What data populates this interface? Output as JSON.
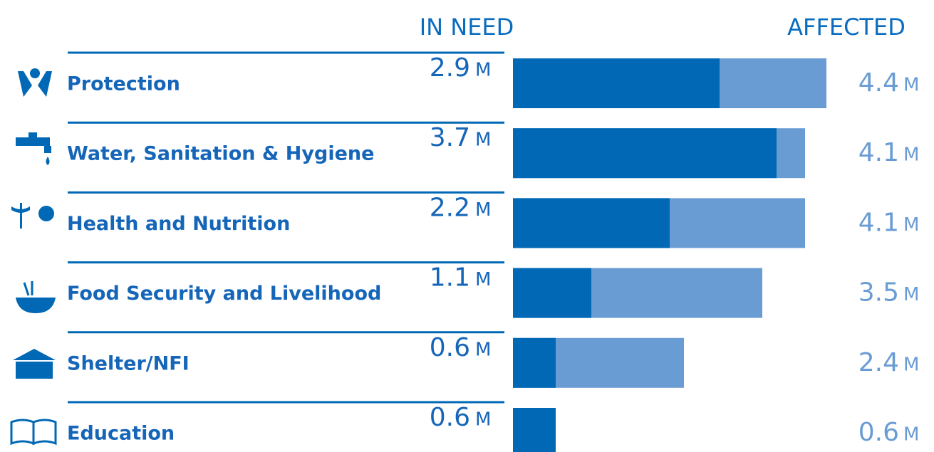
{
  "chart_data": {
    "type": "bar",
    "series": [
      {
        "name": "IN NEED",
        "color": "#0068b4",
        "values": [
          2.9,
          3.7,
          2.2,
          1.1,
          0.6,
          0.6
        ]
      },
      {
        "name": "AFFECTED",
        "color": "#6a9cd4",
        "values": [
          4.4,
          4.1,
          4.1,
          3.5,
          2.4,
          0.6
        ]
      }
    ],
    "categories": [
      "Protection",
      "Water, Sanitation & Hygiene",
      "Health and Nutrition",
      "Food Security and Livelihood",
      "Shelter/NFI",
      "Education"
    ],
    "unit": "M"
  }
}
